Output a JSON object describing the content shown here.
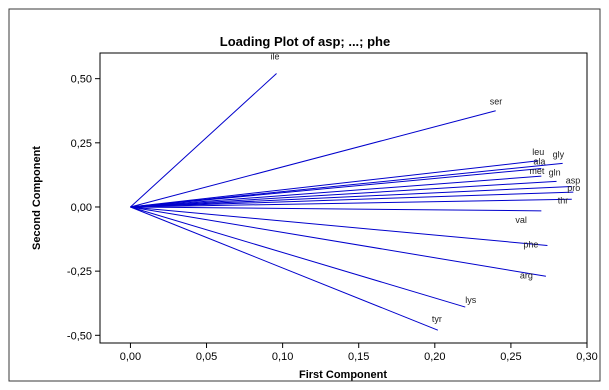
{
  "chart_data": {
    "type": "line",
    "title": "Loading Plot of asp; ...; phe",
    "xlabel": "First Component",
    "ylabel": "Second Component",
    "xlim": [
      -0.02,
      0.3
    ],
    "ylim": [
      -0.53,
      0.6
    ],
    "xticks": [
      "0,00",
      "0,05",
      "0,10",
      "0,15",
      "0,20",
      "0,25",
      "0,30"
    ],
    "yticks": [
      "-0,50",
      "-0,25",
      "0,00",
      "0,25",
      "0,50"
    ],
    "xtick_values": [
      0.0,
      0.05,
      0.1,
      0.15,
      0.2,
      0.25,
      0.3
    ],
    "ytick_values": [
      -0.5,
      -0.25,
      0.0,
      0.25,
      0.5
    ],
    "grid": false,
    "line_color": "#0000cc",
    "series": [
      {
        "name": "ile",
        "x": 0.096,
        "y": 0.52
      },
      {
        "name": "ser",
        "x": 0.24,
        "y": 0.375
      },
      {
        "name": "leu",
        "x": 0.268,
        "y": 0.18
      },
      {
        "name": "gly",
        "x": 0.284,
        "y": 0.17
      },
      {
        "name": "ala",
        "x": 0.27,
        "y": 0.15
      },
      {
        "name": "met",
        "x": 0.27,
        "y": 0.12
      },
      {
        "name": "gln",
        "x": 0.28,
        "y": 0.1
      },
      {
        "name": "asp",
        "x": 0.29,
        "y": 0.08
      },
      {
        "name": "pro",
        "x": 0.291,
        "y": 0.058
      },
      {
        "name": "thr",
        "x": 0.29,
        "y": 0.03
      },
      {
        "name": "val",
        "x": 0.27,
        "y": -0.015
      },
      {
        "name": "phe",
        "x": 0.274,
        "y": -0.15
      },
      {
        "name": "arg",
        "x": 0.273,
        "y": -0.27
      },
      {
        "name": "lys",
        "x": 0.22,
        "y": -0.39
      },
      {
        "name": "tyr",
        "x": 0.202,
        "y": -0.48
      }
    ]
  }
}
